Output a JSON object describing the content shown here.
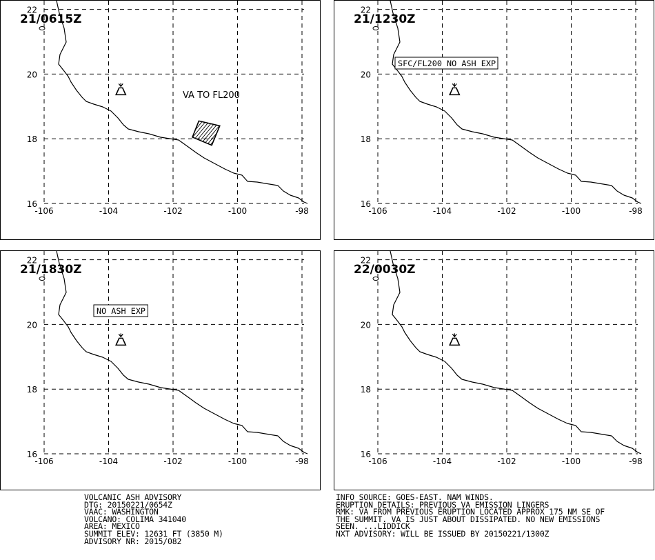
{
  "colors": {
    "line": "#000000",
    "background": "#ffffff"
  },
  "map": {
    "x_ticks": [
      "-106",
      "-104",
      "-102",
      "-100",
      "-98"
    ],
    "y_ticks": [
      "16",
      "18",
      "20",
      "22"
    ],
    "volcano_icon": "volcano-icon",
    "volcano_location": {
      "lon": -103.62,
      "lat": 19.51
    }
  },
  "panels": [
    {
      "time": "21/0615Z",
      "annotation": "VA TO FL200",
      "annotation_boxed": false,
      "has_ash_polygon": true,
      "ash_polygon": [
        [
          -101.2,
          18.55
        ],
        [
          -100.55,
          18.4
        ],
        [
          -100.8,
          17.8
        ],
        [
          -101.4,
          18.05
        ]
      ]
    },
    {
      "time": "21/1230Z",
      "annotation": "SFC/FL200 NO ASH EXP",
      "annotation_boxed": true,
      "has_ash_polygon": false
    },
    {
      "time": "21/1830Z",
      "annotation": "NO ASH EXP",
      "annotation_boxed": true,
      "has_ash_polygon": false
    },
    {
      "time": "22/0030Z",
      "annotation": "",
      "annotation_boxed": false,
      "has_ash_polygon": false
    }
  ],
  "advisory_left": [
    "VOLCANIC ASH ADVISORY",
    "DTG: 20150221/0654Z",
    "VAAC: WASHINGTON",
    "VOLCANO: COLIMA 341040",
    "AREA: MEXICO",
    "SUMMIT ELEV: 12631 FT (3850 M)",
    "ADVISORY NR: 2015/082"
  ],
  "advisory_right": [
    "INFO SOURCE: GOES-EAST. NAM WINDS.",
    "ERUPTION DETAILS: PREVIOUS VA EMISSION LINGERS",
    "RMK: VA FROM PREVIOUS ERUPTION LOCATED APPROX 175 NM SE OF",
    "THE SUMMIT. VA IS JUST ABOUT DISSIPATED. NO NEW EMISSIONS",
    "SEEN. ...LIDDICK",
    "NXT ADVISORY: WILL BE ISSUED BY 20150221/1300Z"
  ]
}
